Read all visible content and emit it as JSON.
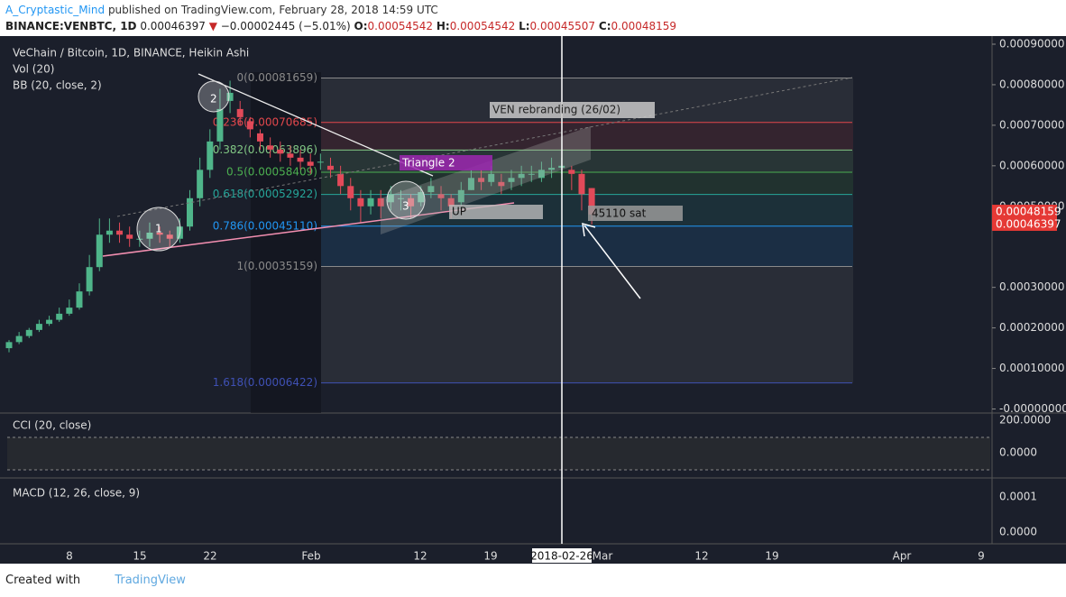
{
  "header": {
    "author": "A_Cryptastic_Mind",
    "published": "published on TradingView.com, February 28, 2018 14:59 UTC",
    "ticker": "BINANCE:VENBTC, 1D",
    "last": "0.00046397",
    "change": "−0.00002445 (−5.01%)",
    "open": "0.00054542",
    "high": "0.00054542",
    "low": "0.00045507",
    "close": "0.00048159"
  },
  "legend": [
    "VeChain / Bitcoin, 1D, BINANCE, Heikin Ashi",
    "Vol (20)",
    "BB (20, close, 2)"
  ],
  "chart_data": {
    "type": "candlestick",
    "ylim": [
      -1e-05,
      0.00092
    ],
    "yticks": [
      {
        "value": 0.0009,
        "label": "0.00090000"
      },
      {
        "value": 0.0008,
        "label": "0.00080000"
      },
      {
        "value": 0.0007,
        "label": "0.00070000"
      },
      {
        "value": 0.0006,
        "label": "0.00060000"
      },
      {
        "value": 0.0005,
        "label": "0.00050000"
      },
      {
        "value": 0.0003,
        "label": "0.00030000"
      },
      {
        "value": 0.0002,
        "label": "0.00020000"
      },
      {
        "value": 0.0001,
        "label": "0.00010000"
      },
      {
        "value": 0,
        "label": "-0.00000000"
      }
    ],
    "price_labels": [
      {
        "value": 0.00048159,
        "label": "0.00048159"
      },
      {
        "value": 0.00046397,
        "label": "0.00046397"
      }
    ],
    "x_tick_labels": [
      "8",
      "15",
      "22",
      "Feb",
      "12",
      "19",
      "Mar",
      "12",
      "19",
      "Apr",
      "9"
    ],
    "crosshair_label": "2018-02-26",
    "open": [
      0.00015,
      0.000165,
      0.00018,
      0.000195,
      0.00021,
      0.00022,
      0.000235,
      0.00025,
      0.00029,
      0.00035,
      0.00043,
      0.00044,
      0.00043,
      0.00042,
      0.00042,
      0.000435,
      0.00043,
      0.00042,
      0.00045,
      0.00052,
      0.00059,
      0.00066,
      0.00076,
      0.00074,
      0.00071,
      0.00068,
      0.00065,
      0.00064,
      0.00063,
      0.00062,
      0.00061,
      0.00061,
      0.0006,
      0.00058,
      0.00055,
      0.00052,
      0.0005,
      0.00052,
      0.00051,
      0.00052,
      0.00052,
      0.00051,
      0.000535,
      0.00053,
      0.00052,
      0.00051,
      0.00054,
      0.00057,
      0.00056,
      0.00056,
      0.00056,
      0.00057,
      0.00058,
      0.00057,
      0.00059,
      0.000595,
      0.00059,
      0.00058,
      0.000545
    ],
    "close": [
      0.000165,
      0.00018,
      0.000195,
      0.00021,
      0.00022,
      0.000235,
      0.00025,
      0.00029,
      0.00035,
      0.00043,
      0.00044,
      0.00043,
      0.00042,
      0.00042,
      0.000435,
      0.00043,
      0.00042,
      0.00045,
      0.00052,
      0.00059,
      0.00066,
      0.00074,
      0.00078,
      0.00072,
      0.00069,
      0.00066,
      0.00064,
      0.00063,
      0.00062,
      0.00061,
      0.0006,
      0.00061,
      0.00059,
      0.00055,
      0.00052,
      0.0005,
      0.00052,
      0.0005,
      0.00053,
      0.00052,
      0.0005,
      0.000535,
      0.00055,
      0.00052,
      0.0005,
      0.00054,
      0.00057,
      0.00056,
      0.00058,
      0.00055,
      0.00057,
      0.00058,
      0.00058,
      0.00059,
      0.000595,
      0.0006,
      0.00058,
      0.00053,
      0.00048
    ],
    "high": [
      0.00017,
      0.00019,
      0.0002,
      0.00022,
      0.00023,
      0.00025,
      0.00027,
      0.00031,
      0.00038,
      0.00047,
      0.00047,
      0.00046,
      0.00045,
      0.00044,
      0.00046,
      0.00045,
      0.00044,
      0.00047,
      0.00054,
      0.00062,
      0.00069,
      0.00079,
      0.00081,
      0.00076,
      0.00072,
      0.00069,
      0.00067,
      0.00066,
      0.00065,
      0.00064,
      0.00063,
      0.00063,
      0.00062,
      0.0006,
      0.00057,
      0.00054,
      0.00054,
      0.00054,
      0.00055,
      0.00054,
      0.00053,
      0.00055,
      0.00057,
      0.00055,
      0.00053,
      0.00056,
      0.00059,
      0.00059,
      0.0006,
      0.00058,
      0.00059,
      0.0006,
      0.0006,
      0.00061,
      0.00062,
      0.00062,
      0.0006,
      0.00059,
      0.000545
    ],
    "low": [
      0.00014,
      0.00016,
      0.000175,
      0.00019,
      0.000205,
      0.000215,
      0.00023,
      0.000245,
      0.00028,
      0.00034,
      0.00041,
      0.00041,
      0.0004,
      0.0004,
      0.0004,
      0.00041,
      0.0004,
      0.00041,
      0.00044,
      0.0005,
      0.00057,
      0.00064,
      0.00073,
      0.0007,
      0.00067,
      0.00064,
      0.00062,
      0.00061,
      0.0006,
      0.00059,
      0.00058,
      0.00059,
      0.00057,
      0.00053,
      0.00049,
      0.00046,
      0.00048,
      0.00047,
      0.00049,
      0.00049,
      0.00047,
      0.0005,
      0.00052,
      0.00049,
      0.00047,
      0.0005,
      0.00054,
      0.00054,
      0.00055,
      0.00053,
      0.00054,
      0.00055,
      0.00056,
      0.00056,
      0.00057,
      0.00058,
      0.00054,
      0.00049,
      0.000455
    ],
    "up_color": "#4fb58a",
    "down_color": "#e24a59",
    "fib_levels": [
      {
        "value": 0.00081659,
        "label": "0(0.00081659)",
        "color": "#8a8a8a"
      },
      {
        "value": 0.00070685,
        "label": "0.236(0.00070685)",
        "color": "#e2474c"
      },
      {
        "value": 0.00063896,
        "label": "0.382(0.00063896)",
        "color": "#81c784"
      },
      {
        "value": 0.00058409,
        "label": "0.5(0.00058409)",
        "color": "#4caf50"
      },
      {
        "value": 0.00052922,
        "label": "0.618(0.00052922)",
        "color": "#26a69a"
      },
      {
        "value": 0.0004511,
        "label": "0.786(0.00045110)",
        "color": "#2196f3"
      },
      {
        "value": 0.00035159,
        "label": "1(0.00035159)",
        "color": "#8a8a8a"
      },
      {
        "value": 6.422e-05,
        "label": "1.618(0.00006422)",
        "color": "#3f51b5"
      }
    ]
  },
  "annotations": {
    "ven": "VEN rebranding (26/02)",
    "triangle": "Triangle 2",
    "up": "UP",
    "sat": "45110 sat",
    "circles": [
      "1",
      "2",
      "3"
    ]
  },
  "cci": {
    "label": "CCI (20, close)",
    "ticks": [
      {
        "value": 200,
        "label": "200.0000"
      },
      {
        "value": 0,
        "label": "0.0000"
      }
    ]
  },
  "macd": {
    "label": "MACD (12, 26, close, 9)",
    "ticks": [
      {
        "value": 0.0001,
        "label": "0.0001"
      },
      {
        "value": 0,
        "label": "0.0000"
      }
    ]
  },
  "footer": {
    "created": "Created with",
    "brand": "TradingView"
  }
}
